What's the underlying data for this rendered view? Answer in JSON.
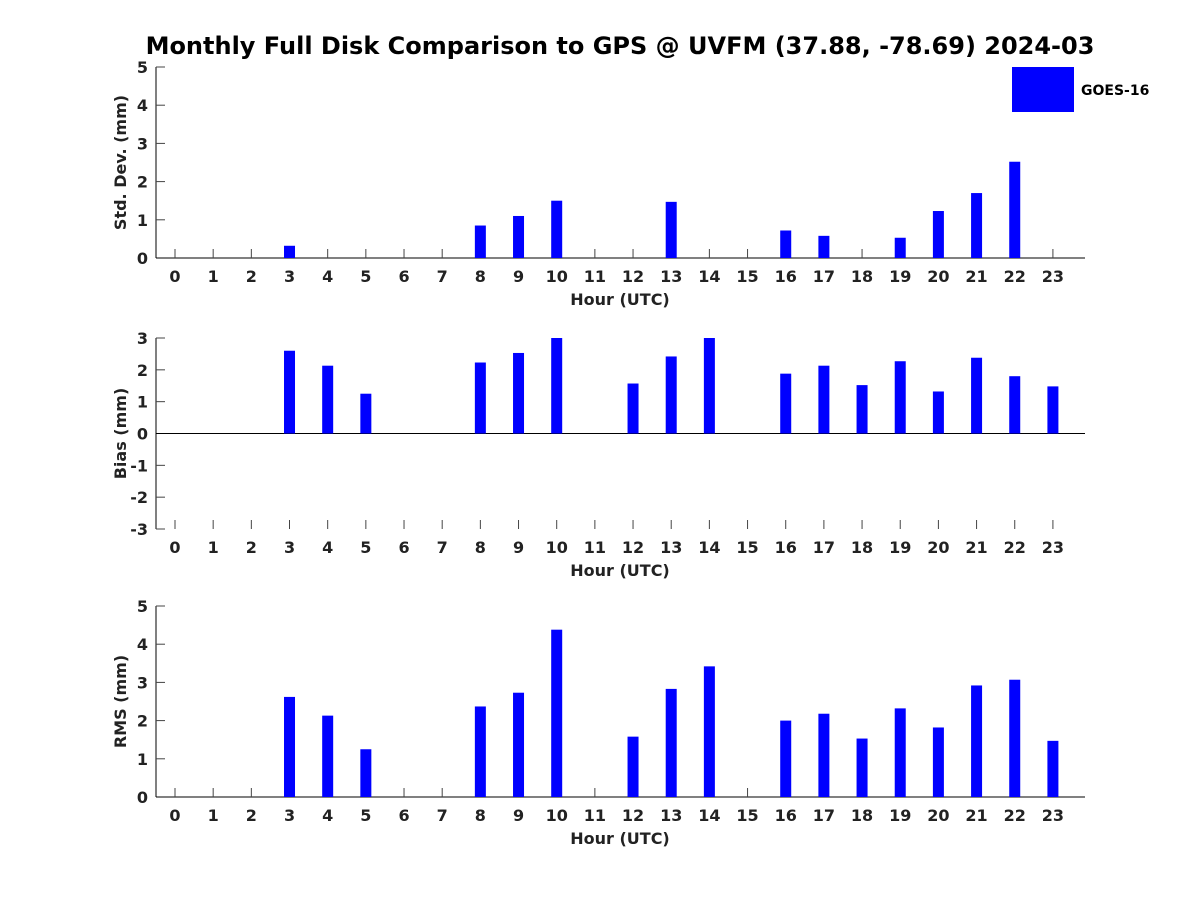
{
  "chart_data": {
    "type": "bar",
    "title": "Monthly Full Disk Comparison to GPS @ UVFM (37.88, -78.69) 2024-03",
    "series_name": "GOES-16",
    "bar_color": "#0000ff",
    "legend_position": "top-right",
    "xlabel": "Hour (UTC)",
    "x": [
      0,
      1,
      2,
      3,
      4,
      5,
      6,
      7,
      8,
      9,
      10,
      11,
      12,
      13,
      14,
      15,
      16,
      17,
      18,
      19,
      20,
      21,
      22,
      23
    ],
    "panels": [
      {
        "key": "std",
        "ylabel": "Std. Dev. (mm)",
        "ylim": [
          0,
          5
        ],
        "yticks": [
          0,
          1,
          2,
          3,
          4,
          5
        ],
        "values": [
          null,
          null,
          null,
          0.32,
          null,
          null,
          null,
          null,
          0.85,
          1.1,
          1.5,
          null,
          null,
          1.47,
          null,
          null,
          0.72,
          0.58,
          null,
          0.53,
          1.23,
          1.7,
          2.52,
          null
        ]
      },
      {
        "key": "bias",
        "ylabel": "Bias (mm)",
        "ylim": [
          -3,
          3
        ],
        "yticks": [
          -3,
          -2,
          -1,
          0,
          1,
          2,
          3
        ],
        "values": [
          null,
          null,
          null,
          2.6,
          2.13,
          1.25,
          null,
          null,
          2.23,
          2.53,
          3.0,
          null,
          1.57,
          2.42,
          3.0,
          null,
          1.88,
          2.13,
          1.52,
          2.27,
          1.32,
          2.38,
          1.8,
          1.48
        ]
      },
      {
        "key": "rms",
        "ylabel": "RMS (mm)",
        "ylim": [
          0,
          5
        ],
        "yticks": [
          0,
          1,
          2,
          3,
          4,
          5
        ],
        "values": [
          null,
          null,
          null,
          2.62,
          2.13,
          1.25,
          null,
          null,
          2.37,
          2.73,
          4.38,
          null,
          1.58,
          2.83,
          3.42,
          null,
          2.0,
          2.18,
          1.53,
          2.32,
          1.82,
          2.92,
          3.07,
          1.47
        ]
      }
    ]
  }
}
